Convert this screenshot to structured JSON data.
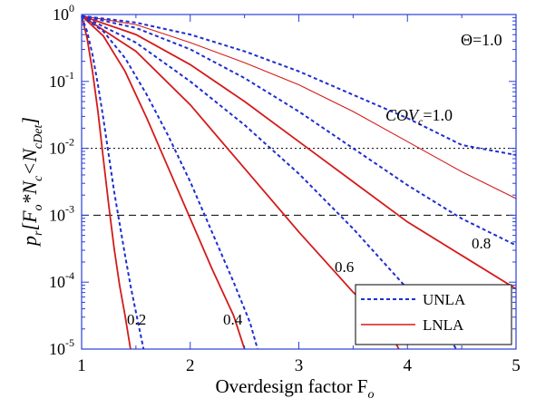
{
  "chart_data": {
    "type": "line",
    "xlabel": "Overdesign factor F",
    "xlabel_sub": "o",
    "ylabel_parts": [
      "p",
      "r",
      "[F",
      "o",
      "*N",
      "c",
      "<N",
      "cDet",
      "]"
    ],
    "xlim": [
      1,
      5
    ],
    "ylim_log10": [
      -5,
      0
    ],
    "y_scale": "log",
    "x_ticks": [
      {
        "v": 1,
        "label": "1"
      },
      {
        "v": 2,
        "label": "2"
      },
      {
        "v": 3,
        "label": "3"
      },
      {
        "v": 4,
        "label": "4"
      },
      {
        "v": 5,
        "label": "5"
      }
    ],
    "y_ticks": [
      {
        "e": 0,
        "base": "10",
        "exp": "0"
      },
      {
        "e": -1,
        "base": "10",
        "exp": "-1"
      },
      {
        "e": -2,
        "base": "10",
        "exp": "-2"
      },
      {
        "e": -3,
        "base": "10",
        "exp": "-3"
      },
      {
        "e": -4,
        "base": "10",
        "exp": "-4"
      },
      {
        "e": -5,
        "base": "10",
        "exp": "-5"
      }
    ],
    "reference_lines": [
      {
        "y": 0.01,
        "style": "dotted"
      },
      {
        "y": 0.001,
        "style": "dashed"
      }
    ],
    "annotations": [
      {
        "id": "theta",
        "text": "Θ=1.0"
      },
      {
        "id": "cov",
        "main": "COV",
        "sub": "c",
        "tail": "=1.0"
      },
      {
        "id": "l08",
        "text": "0.8"
      },
      {
        "id": "l06",
        "text": "0.6"
      },
      {
        "id": "l04",
        "text": "0.4"
      },
      {
        "id": "l02",
        "text": "0.2"
      }
    ],
    "legend": {
      "position": "bottom-right",
      "entries": [
        {
          "label": "UNLA",
          "color": "#1f2fd0",
          "style": "dashed"
        },
        {
          "label": "LNLA",
          "color": "#d41a1a",
          "style": "solid"
        }
      ]
    },
    "series": [
      {
        "group": "LNLA",
        "cov": 0.2,
        "points": [
          [
            1,
            -0.03
          ],
          [
            1.05,
            -0.35
          ],
          [
            1.1,
            -0.85
          ],
          [
            1.15,
            -1.45
          ],
          [
            1.2,
            -2.15
          ],
          [
            1.25,
            -2.85
          ],
          [
            1.3,
            -3.5
          ],
          [
            1.35,
            -4.05
          ],
          [
            1.4,
            -4.5
          ],
          [
            1.45,
            -5.0
          ]
        ]
      },
      {
        "group": "LNLA",
        "cov": 0.4,
        "points": [
          [
            1,
            -0.02
          ],
          [
            1.2,
            -0.32
          ],
          [
            1.4,
            -0.85
          ],
          [
            1.6,
            -1.55
          ],
          [
            1.8,
            -2.3
          ],
          [
            2.0,
            -3.05
          ],
          [
            2.2,
            -3.8
          ],
          [
            2.4,
            -4.5
          ],
          [
            2.5,
            -5.0
          ]
        ]
      },
      {
        "group": "LNLA",
        "cov": 0.6,
        "points": [
          [
            1,
            -0.02
          ],
          [
            1.5,
            -0.55
          ],
          [
            2.0,
            -1.35
          ],
          [
            2.5,
            -2.3
          ],
          [
            3.0,
            -3.25
          ],
          [
            3.5,
            -4.15
          ],
          [
            3.8,
            -4.6
          ],
          [
            3.92,
            -5.0
          ]
        ]
      },
      {
        "group": "LNLA",
        "cov": 0.8,
        "points": [
          [
            1,
            -0.02
          ],
          [
            1.5,
            -0.3
          ],
          [
            2.0,
            -0.75
          ],
          [
            2.5,
            -1.3
          ],
          [
            3.0,
            -1.9
          ],
          [
            3.5,
            -2.5
          ],
          [
            4.0,
            -3.1
          ],
          [
            4.5,
            -3.6
          ],
          [
            5.0,
            -4.1
          ]
        ]
      },
      {
        "group": "LNLA",
        "cov": 1.0,
        "points": [
          [
            1,
            -0.02
          ],
          [
            1.5,
            -0.15
          ],
          [
            2.0,
            -0.42
          ],
          [
            2.5,
            -0.72
          ],
          [
            3.0,
            -1.05
          ],
          [
            3.5,
            -1.45
          ],
          [
            4.0,
            -1.9
          ],
          [
            4.5,
            -2.35
          ],
          [
            5.0,
            -2.75
          ]
        ]
      },
      {
        "group": "UNLA",
        "cov": 0.2,
        "points": [
          [
            1,
            -0.03
          ],
          [
            1.05,
            -0.25
          ],
          [
            1.1,
            -0.6
          ],
          [
            1.15,
            -1.05
          ],
          [
            1.2,
            -1.55
          ],
          [
            1.25,
            -2.1
          ],
          [
            1.3,
            -2.65
          ],
          [
            1.4,
            -3.6
          ],
          [
            1.45,
            -4.05
          ],
          [
            1.5,
            -4.45
          ],
          [
            1.57,
            -5.0
          ]
        ]
      },
      {
        "group": "UNLA",
        "cov": 0.4,
        "points": [
          [
            1,
            -0.02
          ],
          [
            1.2,
            -0.25
          ],
          [
            1.4,
            -0.65
          ],
          [
            1.6,
            -1.2
          ],
          [
            1.8,
            -1.82
          ],
          [
            2.0,
            -2.5
          ],
          [
            2.2,
            -3.25
          ],
          [
            2.4,
            -4.0
          ],
          [
            2.55,
            -4.6
          ],
          [
            2.62,
            -5.0
          ]
        ]
      },
      {
        "group": "UNLA",
        "cov": 0.6,
        "points": [
          [
            1,
            -0.02
          ],
          [
            1.5,
            -0.42
          ],
          [
            2.0,
            -1.0
          ],
          [
            2.5,
            -1.65
          ],
          [
            3.0,
            -2.38
          ],
          [
            3.5,
            -3.2
          ],
          [
            4.0,
            -4.1
          ],
          [
            4.35,
            -4.75
          ],
          [
            4.45,
            -5.0
          ]
        ]
      },
      {
        "group": "UNLA",
        "cov": 0.8,
        "points": [
          [
            1,
            -0.02
          ],
          [
            1.5,
            -0.2
          ],
          [
            2.0,
            -0.52
          ],
          [
            2.5,
            -0.95
          ],
          [
            3.0,
            -1.45
          ],
          [
            3.5,
            -2.0
          ],
          [
            4.0,
            -2.55
          ],
          [
            4.5,
            -3.05
          ],
          [
            5.0,
            -3.45
          ]
        ]
      },
      {
        "group": "UNLA",
        "cov": 1.0,
        "points": [
          [
            1,
            -0.02
          ],
          [
            1.5,
            -0.12
          ],
          [
            2.0,
            -0.3
          ],
          [
            2.5,
            -0.55
          ],
          [
            3.0,
            -0.85
          ],
          [
            3.5,
            -1.2
          ],
          [
            4.0,
            -1.55
          ],
          [
            4.5,
            -1.95
          ],
          [
            5.0,
            -2.1
          ]
        ]
      }
    ]
  }
}
